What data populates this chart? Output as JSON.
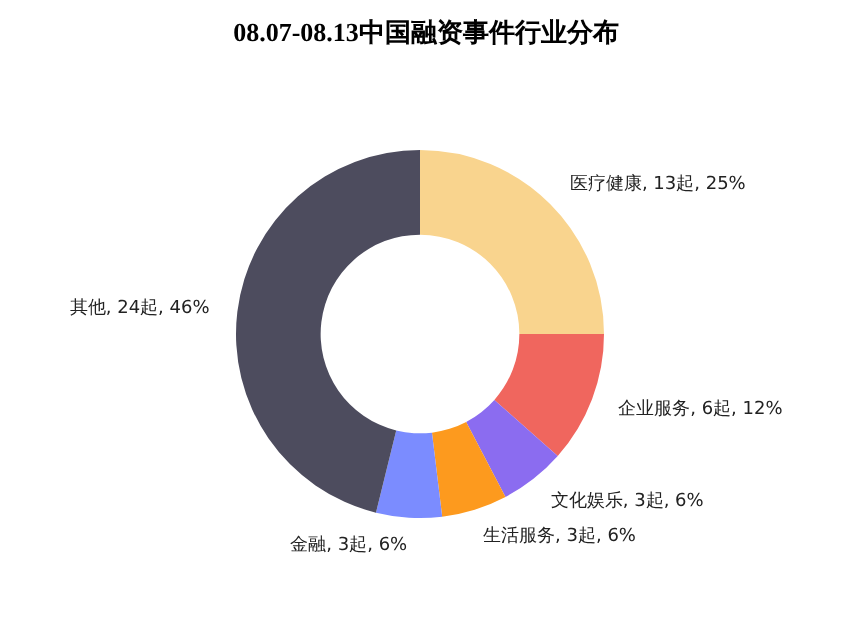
{
  "chart_data": {
    "type": "donut",
    "title": "08.07-08.13中国融资事件行业分布",
    "categories": [
      "医疗健康",
      "企业服务",
      "文化娱乐",
      "生活服务",
      "金融",
      "其他"
    ],
    "values": [
      13,
      6,
      3,
      3,
      3,
      24
    ],
    "value_labels": [
      "13起, 25%",
      "6起, 12%",
      "3起, 6%",
      "3起, 6%",
      "3起, 6%",
      "24起, 46%"
    ],
    "colors": [
      "#f9d48e",
      "#f0665e",
      "#8b6cf0",
      "#fd9a1e",
      "#7b8cff",
      "#4d4c5e"
    ],
    "legend": false
  }
}
